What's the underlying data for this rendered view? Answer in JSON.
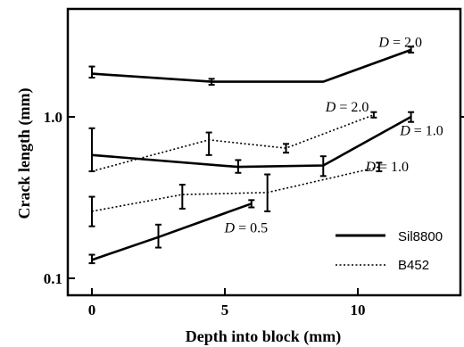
{
  "chart_data": {
    "type": "line",
    "xlabel": "Depth into block (mm)",
    "ylabel": "Crack length (mm)",
    "xlim": [
      -1,
      14
    ],
    "ylim": [
      0.1,
      4
    ],
    "yscale": "log",
    "x_ticks": [
      0,
      5,
      10
    ],
    "x_tick_labels": [
      "0",
      "5",
      "10"
    ],
    "y_ticks": [
      0.1,
      1.0
    ],
    "y_tick_labels": [
      "0.1",
      "1.0"
    ],
    "grid": false,
    "legend_position": "bottom-right",
    "legend": [
      {
        "label": "Sil8800",
        "style": "solid"
      },
      {
        "label": "B452",
        "style": "dotted"
      }
    ],
    "series": [
      {
        "name": "Sil8800",
        "group": "D = 2.0",
        "style": "solid",
        "x": [
          0,
          4.5,
          8.7,
          12
        ],
        "y": [
          1.85,
          1.65,
          1.65,
          2.6
        ],
        "err": [
          [
            1.75,
            2.05
          ],
          [
            1.58,
            1.72
          ],
          null,
          [
            2.5,
            2.72
          ]
        ]
      },
      {
        "name": "Sil8800",
        "group": "D = 1.0",
        "style": "solid",
        "x": [
          0,
          5.5,
          8.7,
          12
        ],
        "y": [
          0.58,
          0.49,
          0.5,
          1.0
        ],
        "err": [
          [
            0.46,
            0.85
          ],
          [
            0.45,
            0.54
          ],
          [
            0.43,
            0.57
          ],
          [
            0.93,
            1.07
          ]
        ]
      },
      {
        "name": "Sil8800",
        "group": "D = 0.5",
        "style": "solid",
        "x": [
          0,
          2.5,
          6
        ],
        "y": [
          0.13,
          0.18,
          0.29
        ],
        "err": [
          [
            0.124,
            0.14
          ],
          [
            0.155,
            0.215
          ],
          [
            0.275,
            0.305
          ]
        ]
      },
      {
        "name": "B452",
        "group": "D = 2.0",
        "style": "dotted",
        "x": [
          0,
          4.4,
          7.3,
          10.6
        ],
        "y": [
          0.46,
          0.72,
          0.64,
          1.03
        ],
        "err": [
          [
            null,
            null
          ],
          [
            0.58,
            0.8
          ],
          [
            0.6,
            0.68
          ],
          [
            0.99,
            1.07
          ]
        ]
      },
      {
        "name": "B452",
        "group": "D = 1.0",
        "style": "dotted",
        "x": [
          0,
          3.4,
          6.6,
          10.8
        ],
        "y": [
          0.26,
          0.33,
          0.34,
          0.49
        ],
        "err": [
          [
            0.21,
            0.32
          ],
          [
            0.27,
            0.38
          ],
          [
            0.26,
            0.44
          ],
          [
            0.46,
            0.52
          ]
        ]
      }
    ],
    "annotations": [
      {
        "text": "D = 2.0",
        "x": 11.6,
        "y": 2.9
      },
      {
        "text": "D = 2.0",
        "x": 9.6,
        "y": 1.15
      },
      {
        "text": "D = 1.0",
        "x": 12.4,
        "y": 0.82
      },
      {
        "text": "D = 1.0",
        "x": 11.1,
        "y": 0.49
      },
      {
        "text": "D = 0.5",
        "x": 5.8,
        "y": 0.205
      }
    ]
  }
}
